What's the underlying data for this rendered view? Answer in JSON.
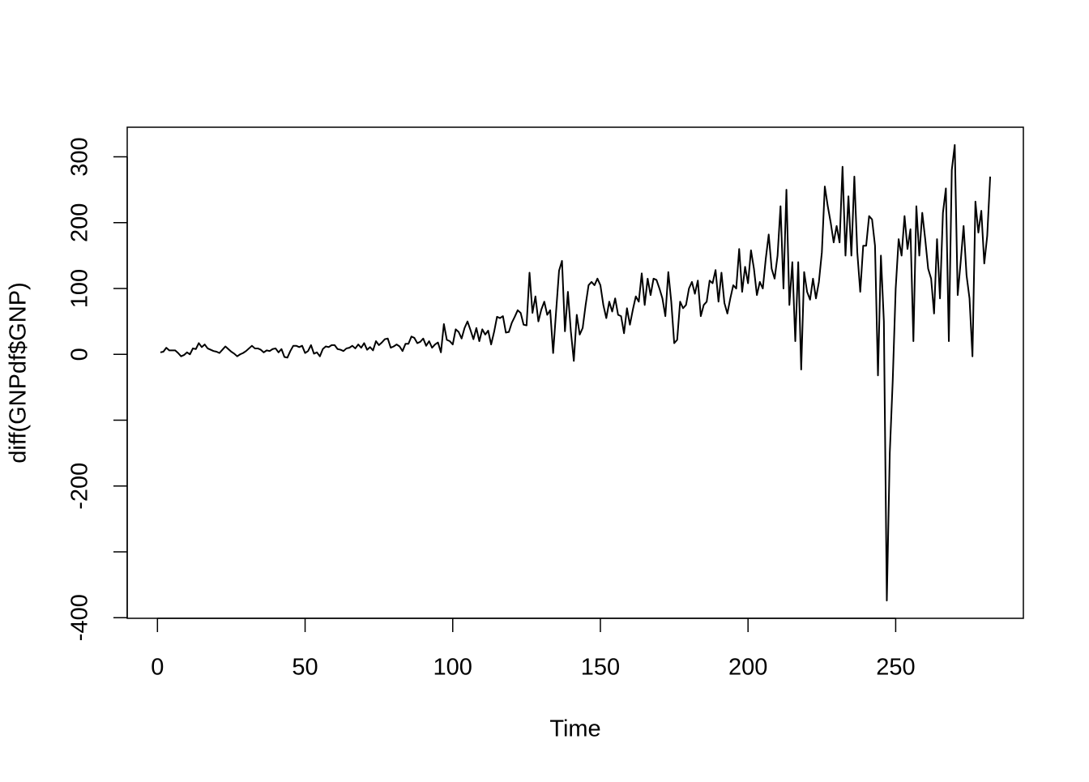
{
  "chart_data": {
    "type": "line",
    "x_label": "Time",
    "y_label": "diff(GNPdf$GNP)",
    "x": [
      1,
      2,
      3,
      4,
      5,
      6,
      7,
      8,
      9,
      10,
      11,
      12,
      13,
      14,
      15,
      16,
      17,
      18,
      19,
      20,
      21,
      22,
      23,
      24,
      25,
      26,
      27,
      28,
      29,
      30,
      31,
      32,
      33,
      34,
      35,
      36,
      37,
      38,
      39,
      40,
      41,
      42,
      43,
      44,
      45,
      46,
      47,
      48,
      49,
      50,
      51,
      52,
      53,
      54,
      55,
      56,
      57,
      58,
      59,
      60,
      61,
      62,
      63,
      64,
      65,
      66,
      67,
      68,
      69,
      70,
      71,
      72,
      73,
      74,
      75,
      76,
      77,
      78,
      79,
      80,
      81,
      82,
      83,
      84,
      85,
      86,
      87,
      88,
      89,
      90,
      91,
      92,
      93,
      94,
      95,
      96,
      97,
      98,
      99,
      100,
      101,
      102,
      103,
      104,
      105,
      106,
      107,
      108,
      109,
      110,
      111,
      112,
      113,
      114,
      115,
      116,
      117,
      118,
      119,
      120,
      121,
      122,
      123,
      124,
      125,
      126,
      127,
      128,
      129,
      130,
      131,
      132,
      133,
      134,
      135,
      136,
      137,
      138,
      139,
      140,
      141,
      142,
      143,
      144,
      145,
      146,
      147,
      148,
      149,
      150,
      151,
      152,
      153,
      154,
      155,
      156,
      157,
      158,
      159,
      160,
      161,
      162,
      163,
      164,
      165,
      166,
      167,
      168,
      169,
      170,
      171,
      172,
      173,
      174,
      175,
      176,
      177,
      178,
      179,
      180,
      181,
      182,
      183,
      184,
      185,
      186,
      187,
      188,
      189,
      190,
      191,
      192,
      193,
      194,
      195,
      196,
      197,
      198,
      199,
      200,
      201,
      202,
      203,
      204,
      205,
      206,
      207,
      208,
      209,
      210,
      211,
      212,
      213,
      214,
      215,
      216,
      217,
      218,
      219,
      220,
      221,
      222,
      223,
      224,
      225,
      226,
      227,
      228,
      229,
      230,
      231,
      232,
      233,
      234,
      235,
      236,
      237,
      238,
      239,
      240,
      241,
      242,
      243,
      244,
      245,
      246,
      247,
      248,
      249,
      250,
      251,
      252,
      253,
      254,
      255,
      256,
      257,
      258,
      259,
      260,
      261,
      262,
      263,
      264,
      265,
      266,
      267,
      268,
      269,
      270,
      271,
      272,
      273,
      274,
      275,
      276,
      277,
      278,
      279,
      280,
      281,
      282
    ],
    "values": [
      3,
      4,
      10,
      6,
      6,
      6,
      2,
      -3,
      -1,
      3,
      0,
      9,
      8,
      17,
      11,
      15,
      9,
      7,
      5,
      4,
      2,
      7,
      12,
      8,
      4,
      1,
      -3,
      0,
      2,
      5,
      9,
      13,
      9,
      9,
      7,
      3,
      6,
      5,
      8,
      9,
      3,
      8,
      -4,
      -5,
      5,
      13,
      13,
      11,
      13,
      2,
      5,
      14,
      1,
      3,
      -3,
      8,
      12,
      11,
      14,
      14,
      8,
      7,
      5,
      9,
      10,
      13,
      9,
      15,
      10,
      17,
      7,
      11,
      6,
      20,
      14,
      18,
      23,
      24,
      10,
      12,
      15,
      12,
      5,
      16,
      16,
      27,
      25,
      17,
      19,
      24,
      13,
      20,
      10,
      15,
      18,
      3,
      46,
      22,
      20,
      15,
      38,
      34,
      24,
      40,
      50,
      37,
      23,
      40,
      20,
      38,
      30,
      36,
      15,
      34,
      57,
      55,
      58,
      33,
      34,
      48,
      57,
      67,
      63,
      45,
      44,
      124,
      63,
      88,
      50,
      68,
      80,
      60,
      67,
      2,
      65,
      127,
      142,
      35,
      95,
      35,
      -10,
      60,
      30,
      40,
      75,
      105,
      110,
      105,
      115,
      105,
      75,
      55,
      80,
      65,
      85,
      60,
      58,
      32,
      70,
      45,
      68,
      88,
      80,
      123,
      75,
      115,
      90,
      115,
      113,
      100,
      85,
      58,
      125,
      80,
      17,
      22,
      80,
      70,
      75,
      100,
      110,
      92,
      112,
      58,
      75,
      80,
      112,
      108,
      128,
      80,
      124,
      78,
      62,
      85,
      105,
      100,
      160,
      95,
      133,
      108,
      158,
      130,
      90,
      110,
      100,
      145,
      182,
      130,
      115,
      150,
      225,
      100,
      250,
      75,
      140,
      20,
      140,
      -23,
      125,
      95,
      83,
      115,
      85,
      110,
      155,
      255,
      225,
      200,
      170,
      195,
      170,
      285,
      150,
      240,
      150,
      270,
      155,
      95,
      165,
      165,
      210,
      205,
      165,
      -32,
      150,
      50,
      -374,
      -150,
      -40,
      100,
      175,
      150,
      210,
      160,
      190,
      20,
      225,
      150,
      215,
      175,
      130,
      115,
      62,
      175,
      85,
      215,
      252,
      20,
      280,
      318,
      90,
      140,
      195,
      120,
      85,
      -3,
      232,
      185,
      218,
      138,
      180,
      270
    ],
    "color": "#000000",
    "xlim": [
      -10.24,
      293.24
    ],
    "ylim": [
      -401,
      345
    ],
    "xticks": [
      0,
      50,
      100,
      150,
      200,
      250
    ],
    "yticks": [
      -400,
      {
        "value": -300,
        "label": null
      },
      -200,
      {
        "value": -100,
        "label": null
      },
      0,
      100,
      200,
      300
    ]
  }
}
